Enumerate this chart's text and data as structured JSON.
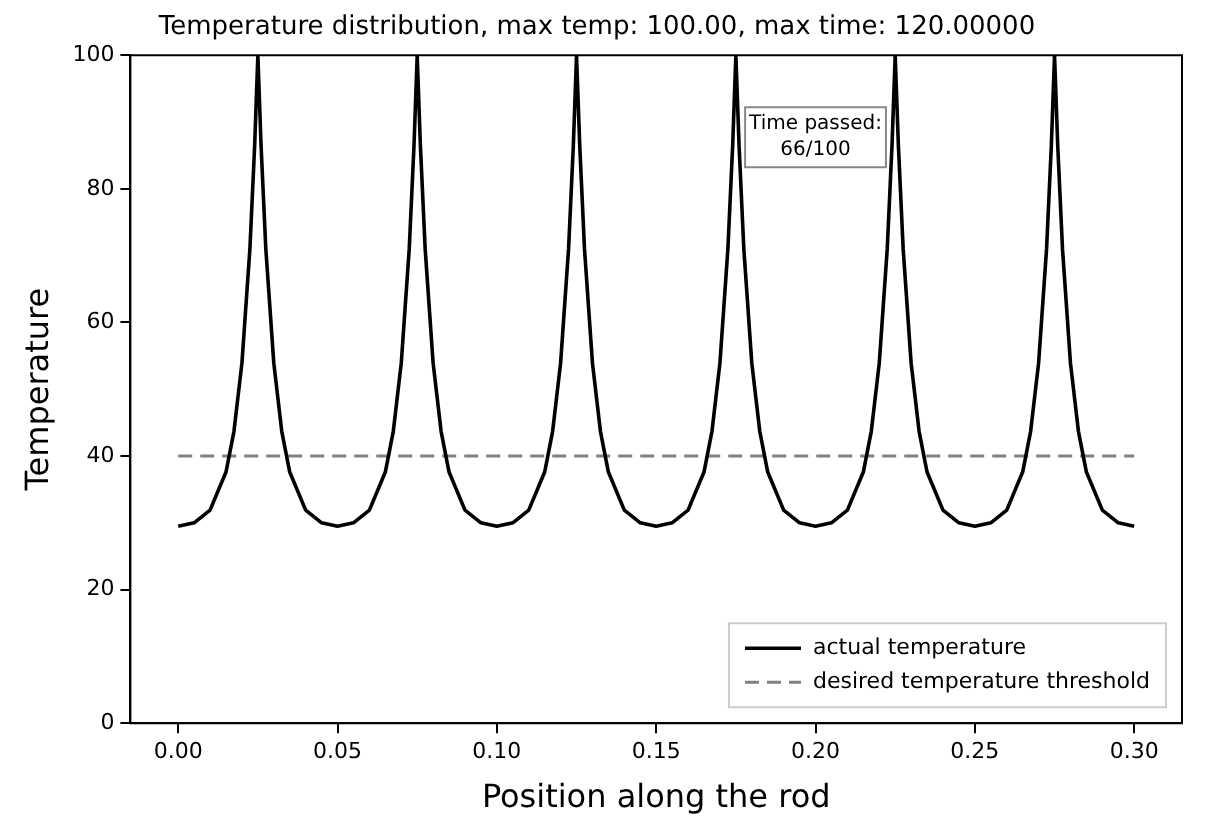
{
  "chart_data": {
    "type": "line",
    "title": "Temperature distribution, max temp: 100.00, max time: 120.00000",
    "xlabel": "Position along the rod",
    "ylabel": "Temperature",
    "series": [
      {
        "name": "actual temperature",
        "color": "#000000",
        "line_style": "solid",
        "x": [
          0,
          0.005,
          0.01,
          0.015,
          0.0175,
          0.02,
          0.0225,
          0.024,
          0.025,
          0.026,
          0.0275,
          0.03,
          0.0325,
          0.035,
          0.04,
          0.045,
          0.05,
          0.055,
          0.06,
          0.065,
          0.0675,
          0.07,
          0.0725,
          0.074,
          0.075,
          0.076,
          0.0775,
          0.08,
          0.0825,
          0.085,
          0.09,
          0.095,
          0.1,
          0.105,
          0.11,
          0.115,
          0.1175,
          0.12,
          0.1225,
          0.124,
          0.125,
          0.126,
          0.1275,
          0.13,
          0.1325,
          0.135,
          0.14,
          0.145,
          0.15,
          0.155,
          0.16,
          0.165,
          0.1675,
          0.17,
          0.1725,
          0.174,
          0.175,
          0.176,
          0.1775,
          0.18,
          0.1825,
          0.185,
          0.19,
          0.195,
          0.2,
          0.205,
          0.21,
          0.215,
          0.2175,
          0.22,
          0.2225,
          0.224,
          0.225,
          0.226,
          0.2275,
          0.23,
          0.2325,
          0.235,
          0.24,
          0.245,
          0.25,
          0.255,
          0.26,
          0.265,
          0.2675,
          0.27,
          0.2725,
          0.274,
          0.275,
          0.276,
          0.2775,
          0.28,
          0.2825,
          0.285,
          0.29,
          0.295,
          0.3
        ],
        "values": [
          29.5,
          30,
          31.9,
          37.6,
          43.7,
          53.9,
          71,
          86.5,
          100,
          86.5,
          71,
          53.9,
          43.7,
          37.6,
          31.9,
          30,
          29.5,
          30,
          31.9,
          37.6,
          43.7,
          53.9,
          71,
          86.5,
          100,
          86.5,
          71,
          53.9,
          43.7,
          37.6,
          31.9,
          30,
          29.5,
          30,
          31.9,
          37.6,
          43.7,
          53.9,
          71,
          86.5,
          100,
          86.5,
          71,
          53.9,
          43.7,
          37.6,
          31.9,
          30,
          29.5,
          30,
          31.9,
          37.6,
          43.7,
          53.9,
          71,
          86.5,
          100,
          86.5,
          71,
          53.9,
          43.7,
          37.6,
          31.9,
          30,
          29.5,
          30,
          31.9,
          37.6,
          43.7,
          53.9,
          71,
          86.5,
          100,
          86.5,
          71,
          53.9,
          43.7,
          37.6,
          31.9,
          30,
          29.5,
          30,
          31.9,
          37.6,
          43.7,
          53.9,
          71,
          86.5,
          100,
          86.5,
          71,
          53.9,
          43.7,
          37.6,
          31.9,
          30,
          29.5
        ]
      }
    ],
    "ref_lines": [
      {
        "axis": "y",
        "value": 40,
        "label": "desired temperature threshold",
        "color": "#808080",
        "line_style": "dashed"
      }
    ],
    "annotations": [
      "Time passed: 66/100"
    ],
    "xlim": [
      -0.015,
      0.315
    ],
    "ylim": [
      0,
      100
    ],
    "xticks": [
      {
        "value": 0,
        "label": "0.00"
      },
      {
        "value": 0.05,
        "label": "0.05"
      },
      {
        "value": 0.1,
        "label": "0.10"
      },
      {
        "value": 0.15,
        "label": "0.15"
      },
      {
        "value": 0.2,
        "label": "0.20"
      },
      {
        "value": 0.25,
        "label": "0.25"
      },
      {
        "value": 0.3,
        "label": "0.30"
      }
    ],
    "yticks": [
      0,
      20,
      40,
      60,
      80,
      100
    ],
    "grid": false,
    "legend": "bottom right",
    "marker": "none"
  }
}
